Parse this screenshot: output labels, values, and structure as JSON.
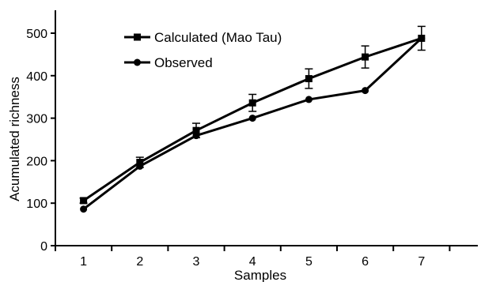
{
  "chart_data": {
    "type": "line",
    "title": "",
    "xlabel": "Samples",
    "ylabel": "Acumulated richness",
    "x": [
      1,
      2,
      3,
      4,
      5,
      6,
      7
    ],
    "xlim": [
      0.5,
      8.0
    ],
    "ylim": [
      0,
      500
    ],
    "yticks": [
      0,
      100,
      200,
      300,
      400,
      500
    ],
    "xticks": [
      1,
      2,
      3,
      4,
      5,
      6,
      7
    ],
    "grid": false,
    "legend_position": "top-left",
    "series": [
      {
        "name": "Calculated (Mao Tau)",
        "marker": "square",
        "color": "#000000",
        "values": [
          106,
          196,
          271,
          336,
          393,
          444,
          488
        ],
        "error": [
          6,
          12,
          17,
          20,
          23,
          26,
          28
        ]
      },
      {
        "name": "Observed",
        "marker": "circle",
        "color": "#000000",
        "values": [
          86,
          187,
          259,
          300,
          344,
          365,
          488
        ]
      }
    ]
  }
}
